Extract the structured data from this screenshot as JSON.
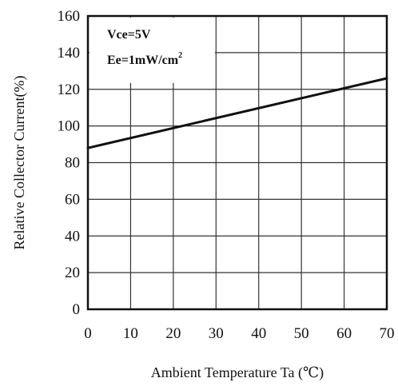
{
  "chart_data": {
    "type": "line",
    "title": "",
    "xlabel": "Ambient Temperature Ta (℃)",
    "ylabel": "Relative Collector Current(%)",
    "xlim": [
      0,
      70
    ],
    "ylim": [
      0,
      160
    ],
    "x_ticks": [
      0,
      10,
      20,
      30,
      40,
      50,
      60,
      70
    ],
    "y_ticks": [
      0,
      20,
      40,
      60,
      80,
      100,
      120,
      140,
      160
    ],
    "grid": true,
    "legend": "none",
    "series": [
      {
        "x": [
          0,
          70
        ],
        "y": [
          88,
          126
        ]
      }
    ],
    "annotations": [
      {
        "text": "Vce=5V"
      },
      {
        "text": "Ee=1mW/cm",
        "sup": "2"
      }
    ],
    "colors": {
      "line": "#111111",
      "grid": "#333333",
      "frame": "#111111"
    }
  }
}
